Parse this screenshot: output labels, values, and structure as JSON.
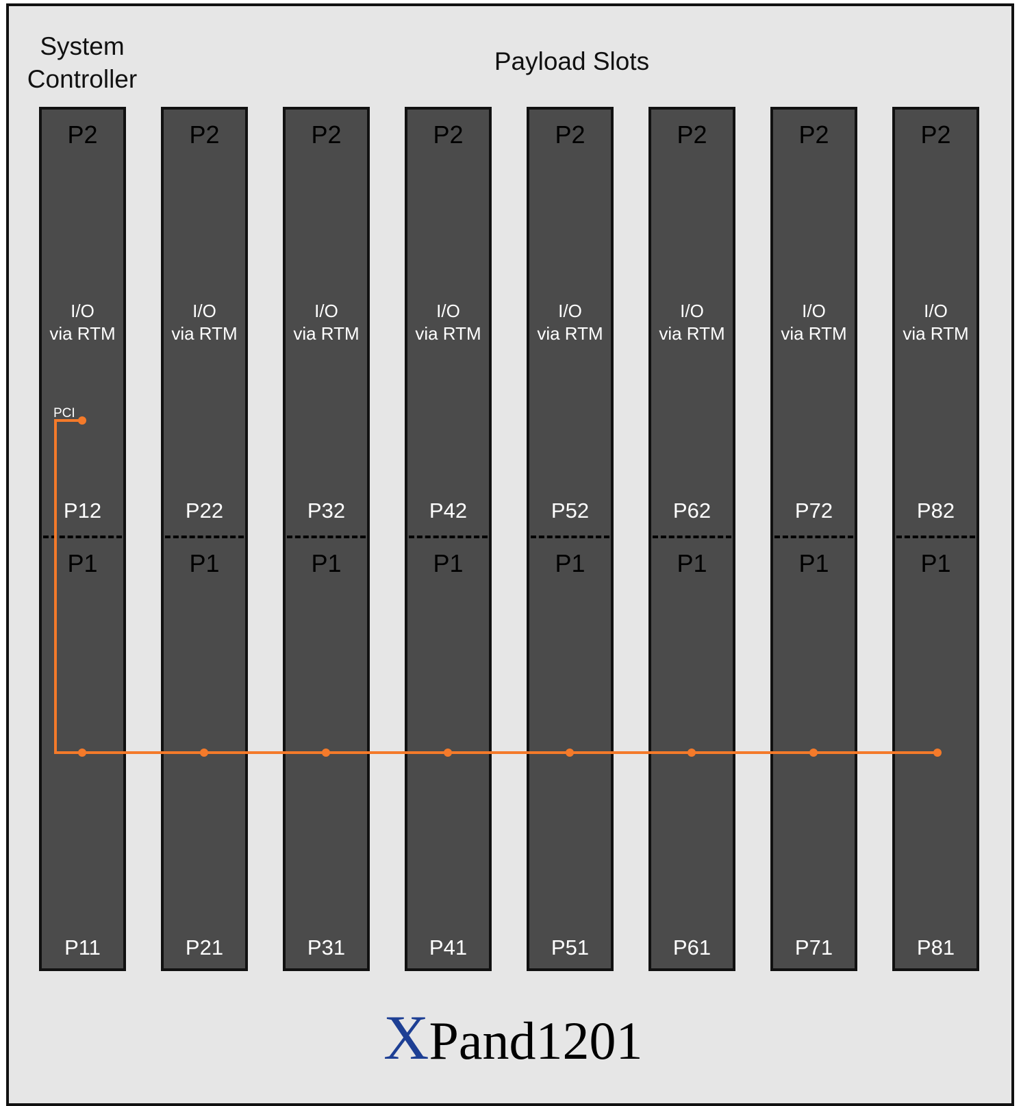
{
  "header": {
    "system_controller_line1": "System",
    "system_controller_line2": "Controller",
    "payload_slots": "Payload Slots"
  },
  "slots": [
    {
      "top": "P2",
      "io_line1": "I/O",
      "io_line2": "via RTM",
      "upper": "P12",
      "bottom_top": "P1",
      "lower": "P11"
    },
    {
      "top": "P2",
      "io_line1": "I/O",
      "io_line2": "via RTM",
      "upper": "P22",
      "bottom_top": "P1",
      "lower": "P21"
    },
    {
      "top": "P2",
      "io_line1": "I/O",
      "io_line2": "via RTM",
      "upper": "P32",
      "bottom_top": "P1",
      "lower": "P31"
    },
    {
      "top": "P2",
      "io_line1": "I/O",
      "io_line2": "via RTM",
      "upper": "P42",
      "bottom_top": "P1",
      "lower": "P41"
    },
    {
      "top": "P2",
      "io_line1": "I/O",
      "io_line2": "via RTM",
      "upper": "P52",
      "bottom_top": "P1",
      "lower": "P51"
    },
    {
      "top": "P2",
      "io_line1": "I/O",
      "io_line2": "via RTM",
      "upper": "P62",
      "bottom_top": "P1",
      "lower": "P61"
    },
    {
      "top": "P2",
      "io_line1": "I/O",
      "io_line2": "via RTM",
      "upper": "P72",
      "bottom_top": "P1",
      "lower": "P71"
    },
    {
      "top": "P2",
      "io_line1": "I/O",
      "io_line2": "via RTM",
      "upper": "P82",
      "bottom_top": "P1",
      "lower": "P81"
    }
  ],
  "bus": {
    "label": "PCI",
    "color": "#f47a2a"
  },
  "logo": {
    "x": "X",
    "rest": "Pand1201",
    "x_color": "#1d3f94"
  },
  "colors": {
    "frame_bg": "#e6e6e6",
    "slot_bg": "#4b4b4b",
    "border": "#111111"
  }
}
